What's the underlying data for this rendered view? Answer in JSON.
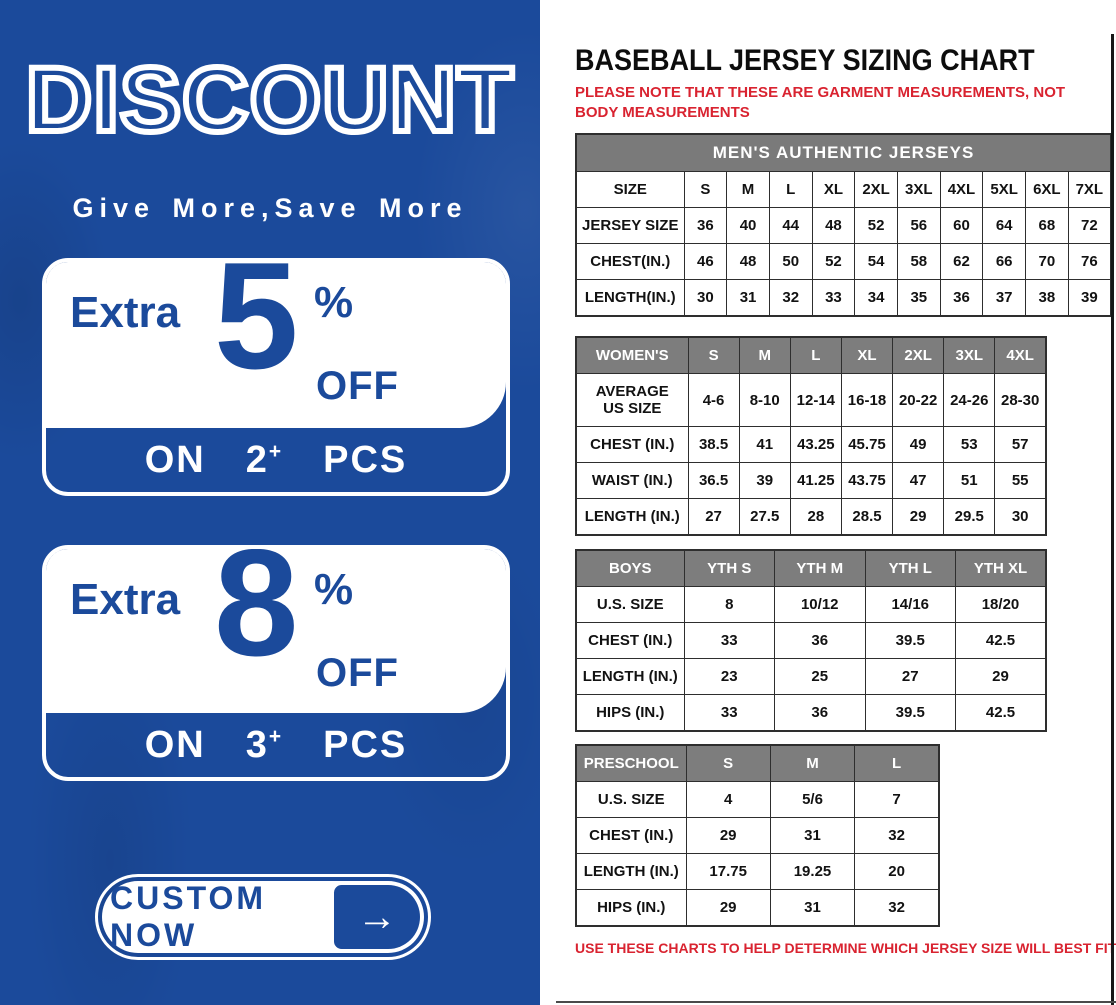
{
  "banner": {
    "title": "DISCOUNT",
    "tagline": "Give More,Save More",
    "offers": [
      {
        "extra": "Extra",
        "value": "5",
        "percent": "%",
        "off": "OFF",
        "on": "ON",
        "qty": "2",
        "plus": "+",
        "unit": "PCS"
      },
      {
        "extra": "Extra",
        "value": "8",
        "percent": "%",
        "off": "OFF",
        "on": "ON",
        "qty": "3",
        "plus": "+",
        "unit": "PCS"
      }
    ],
    "cta": {
      "label": "CUSTOM NOW",
      "arrow": "→"
    },
    "colors": {
      "background": "#1b4a9b",
      "text": "#ffffff"
    }
  },
  "sizing": {
    "title": "BASEBALL JERSEY SIZING CHART",
    "note": "PLEASE NOTE THAT THESE ARE GARMENT MEASUREMENTS, NOT BODY MEASUREMENTS",
    "footer": "USE THESE CHARTS TO HELP DETERMINE WHICH JERSEY SIZE WILL BEST FIT YOU.",
    "colors": {
      "header_gray": "#7a7a7a",
      "note_red": "#d92330"
    },
    "tables": [
      {
        "name": "mens",
        "band": "MEN'S AUTHENTIC JERSEYS",
        "header_row": null,
        "rows": [
          [
            "SIZE",
            "S",
            "M",
            "L",
            "XL",
            "2XL",
            "3XL",
            "4XL",
            "5XL",
            "6XL",
            "7XL"
          ],
          [
            "JERSEY SIZE",
            "36",
            "40",
            "44",
            "48",
            "52",
            "56",
            "60",
            "64",
            "68",
            "72"
          ],
          [
            "CHEST(IN.)",
            "46",
            "48",
            "50",
            "52",
            "54",
            "58",
            "62",
            "66",
            "70",
            "76"
          ],
          [
            "LENGTH(IN.)",
            "30",
            "31",
            "32",
            "33",
            "34",
            "35",
            "36",
            "37",
            "38",
            "39"
          ]
        ]
      },
      {
        "name": "womens",
        "band": null,
        "header_row": [
          "WOMEN'S",
          "S",
          "M",
          "L",
          "XL",
          "2XL",
          "3XL",
          "4XL"
        ],
        "rows": [
          [
            "AVERAGE\nUS SIZE",
            "4-6",
            "8-10",
            "12-14",
            "16-18",
            "20-22",
            "24-26",
            "28-30"
          ],
          [
            "CHEST (IN.)",
            "38.5",
            "41",
            "43.25",
            "45.75",
            "49",
            "53",
            "57"
          ],
          [
            "WAIST (IN.)",
            "36.5",
            "39",
            "41.25",
            "43.75",
            "47",
            "51",
            "55"
          ],
          [
            "LENGTH (IN.)",
            "27",
            "27.5",
            "28",
            "28.5",
            "29",
            "29.5",
            "30"
          ]
        ]
      },
      {
        "name": "boys",
        "band": null,
        "header_row": [
          "BOYS",
          "YTH S",
          "YTH M",
          "YTH L",
          "YTH XL"
        ],
        "rows": [
          [
            "U.S. SIZE",
            "8",
            "10/12",
            "14/16",
            "18/20"
          ],
          [
            "CHEST (IN.)",
            "33",
            "36",
            "39.5",
            "42.5"
          ],
          [
            "LENGTH (IN.)",
            "23",
            "25",
            "27",
            "29"
          ],
          [
            "HIPS (IN.)",
            "33",
            "36",
            "39.5",
            "42.5"
          ]
        ]
      },
      {
        "name": "preschool",
        "band": null,
        "header_row": [
          "PRESCHOOL",
          "S",
          "M",
          "L"
        ],
        "rows": [
          [
            "U.S. SIZE",
            "4",
            "5/6",
            "7"
          ],
          [
            "CHEST (IN.)",
            "29",
            "31",
            "32"
          ],
          [
            "LENGTH (IN.)",
            "17.75",
            "19.25",
            "20"
          ],
          [
            "HIPS (IN.)",
            "29",
            "31",
            "32"
          ]
        ]
      }
    ]
  }
}
